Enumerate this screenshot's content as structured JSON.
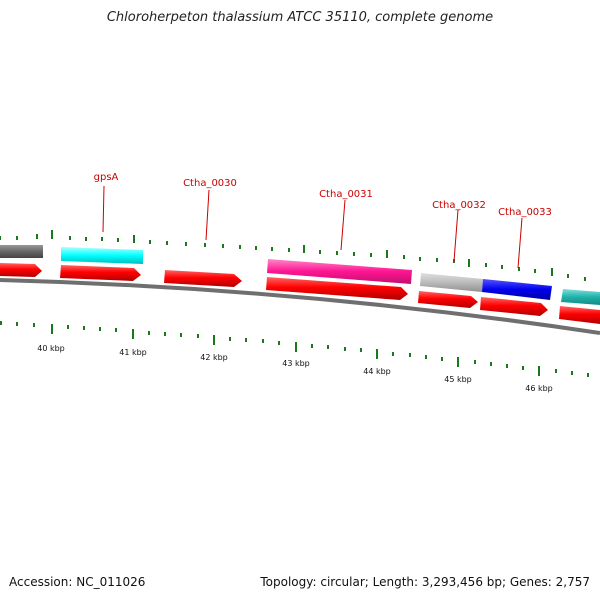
{
  "title": "Chloroherpeton thalassium ATCC 35110, complete genome",
  "footer": {
    "accession": "Accession: NC_011026",
    "stats": "Topology: circular; Length: 3,293,456 bp; Genes: 2,757"
  },
  "axis": {
    "unit": "kbp",
    "labels": [
      "40 kbp",
      "41 kbp",
      "42 kbp",
      "43 kbp",
      "44 kbp",
      "45 kbp",
      "46 kbp"
    ]
  },
  "gene_labels": [
    "gpsA",
    "Ctha_0030",
    "Ctha_0031",
    "Ctha_0032",
    "Ctha_0033"
  ],
  "colors": {
    "cds": "#ff0000",
    "label_text": "#cc0000",
    "label_line": "#cc0000",
    "tick": "#1a7a1a",
    "backbone": "#808080",
    "feature_gray_dark": "#666666",
    "feature_cyan": "#00ffff",
    "feature_magenta": "#ff1493",
    "feature_gray_light": "#bbbbbb",
    "feature_blue": "#0000ee",
    "feature_teal": "#20b2aa"
  }
}
